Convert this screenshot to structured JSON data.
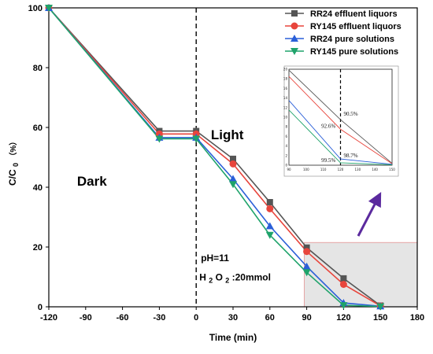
{
  "chart_data": {
    "type": "line",
    "xlabel": "Time (min)",
    "ylabel_main": "C/C",
    "ylabel_sub": "0",
    "ylabel_unit": "（%）",
    "xlim": [
      -120,
      180
    ],
    "ylim": [
      0,
      100
    ],
    "x_ticks": [
      -120,
      -90,
      -60,
      -30,
      0,
      30,
      60,
      90,
      120,
      150,
      180
    ],
    "y_ticks": [
      0,
      20,
      40,
      60,
      80,
      100
    ],
    "x": [
      -120,
      -30,
      0,
      30,
      60,
      90,
      120,
      150
    ],
    "series": [
      {
        "name": "RR24 effluent liquors",
        "color": "#555555",
        "marker": "square",
        "values": [
          100,
          58.8,
          58.8,
          49.5,
          35,
          19.8,
          9.5,
          0.4
        ]
      },
      {
        "name": "RY145 effluent liquors",
        "color": "#e8453c",
        "marker": "circle",
        "values": [
          100,
          57.8,
          57.8,
          47.8,
          32.8,
          18.5,
          7.5,
          0.3
        ]
      },
      {
        "name": "RR24 pure solutions",
        "color": "#2a5fd8",
        "marker": "triangle-up",
        "values": [
          100,
          56.6,
          56.6,
          42.8,
          27,
          13.5,
          1.3,
          0.2
        ]
      },
      {
        "name": "RY145 pure solutions",
        "color": "#1fa36b",
        "marker": "triangle-down",
        "values": [
          100,
          56.2,
          56.2,
          41,
          24,
          11.5,
          0.5,
          0.1
        ]
      }
    ],
    "annotations": {
      "dark": "Dark",
      "light": "Light",
      "ph": "pH=11",
      "h2o2_h": "H",
      "h2o2_2a": "2",
      "h2o2_o": "O",
      "h2o2_2b": "2",
      "h2o2_rest": ":20mmol"
    },
    "dashed_line_x": 0,
    "highlight_box": {
      "x": [
        90,
        180
      ],
      "y": [
        0,
        21.5
      ]
    },
    "inset": {
      "xlim": [
        90,
        150
      ],
      "ylim": [
        0,
        20
      ],
      "x_ticks": [
        90,
        100,
        110,
        120,
        130,
        140,
        150
      ],
      "y_ticks": [
        0,
        2,
        4,
        6,
        8,
        10,
        12,
        14,
        16,
        18,
        20
      ],
      "dashed_line_x": 120,
      "labels": [
        "90.5%",
        "92.6%",
        "98.7%",
        "99.5%"
      ],
      "label_anchor_y": [
        10.0,
        7.5,
        1.3,
        0.3
      ]
    },
    "legend_position": "top-right",
    "grid": false
  }
}
